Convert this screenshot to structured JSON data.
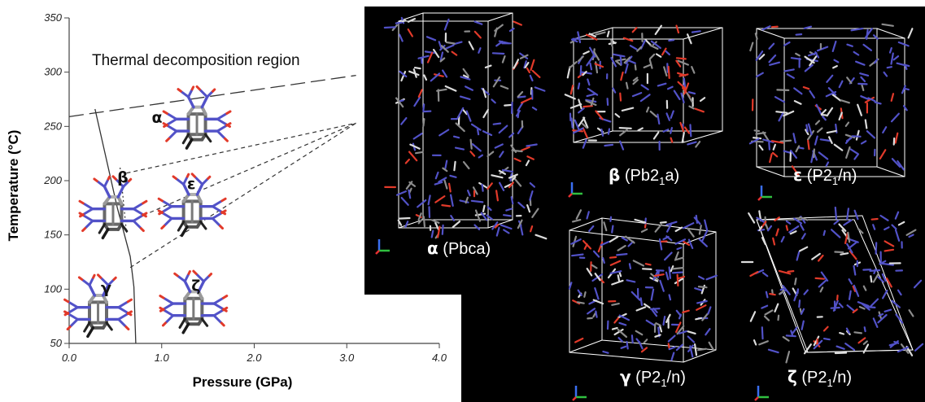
{
  "chart_data": {
    "type": "phase-diagram",
    "xlabel": "Pressure (GPa)",
    "ylabel": "Temperature (°C)",
    "xlim": [
      0.0,
      4.0
    ],
    "ylim": [
      50,
      350
    ],
    "x_ticks": [
      "0.0",
      "1.0",
      "2.0",
      "3.0",
      "4.0"
    ],
    "y_ticks": [
      "50",
      "100",
      "150",
      "200",
      "250",
      "300",
      "350"
    ],
    "region_label": "Thermal decomposition region",
    "decomposition_boundary": [
      [
        0.0,
        259
      ],
      [
        3.1,
        297
      ]
    ],
    "boundaries": [
      {
        "style": "solid",
        "points": [
          [
            0.28,
            266
          ],
          [
            0.52,
            175
          ],
          [
            0.66,
            130
          ],
          [
            0.7,
            102
          ],
          [
            0.72,
            50
          ]
        ]
      },
      {
        "style": "dotted",
        "points": [
          [
            0.55,
            212
          ],
          [
            0.62,
            152
          ]
        ]
      },
      {
        "style": "dashed",
        "points": [
          [
            0.62,
            207
          ],
          [
            3.1,
            253
          ]
        ]
      },
      {
        "style": "dashed",
        "points": [
          [
            0.8,
            168
          ],
          [
            3.1,
            253
          ]
        ]
      },
      {
        "style": "dashed",
        "points": [
          [
            0.66,
            120
          ],
          [
            3.1,
            253
          ]
        ]
      }
    ],
    "phases": [
      {
        "symbol": "α",
        "x": 0.95,
        "y": 258
      },
      {
        "symbol": "β",
        "x": 0.58,
        "y": 203
      },
      {
        "symbol": "ε",
        "x": 1.32,
        "y": 197
      },
      {
        "symbol": "γ",
        "x": 0.4,
        "y": 101
      },
      {
        "symbol": "ζ",
        "x": 1.37,
        "y": 103
      }
    ]
  },
  "crystal_panels": [
    {
      "id": "alpha",
      "symbol": "α",
      "label": " (Pbca)"
    },
    {
      "id": "beta",
      "symbol": "β",
      "label": " (Pb2",
      "sub": "1",
      "label_end": "a)"
    },
    {
      "id": "epsilon",
      "symbol": "ε",
      "label": " (P2",
      "sub": "1",
      "label_end": "/n)"
    },
    {
      "id": "gamma",
      "symbol": "γ",
      "label": " (P2",
      "sub": "1",
      "label_end": "/n)"
    },
    {
      "id": "zeta",
      "symbol": "ζ",
      "label": " (P2",
      "sub": "1",
      "label_end": "/n)"
    }
  ],
  "colors": {
    "carbon": "#8c8c8c",
    "nitrogen": "#5252c8",
    "oxygen": "#e23a2a",
    "hydrogen": "#dcdcdc",
    "axis_x": "#e83030",
    "axis_y": "#3a6ef0",
    "axis_z": "#30c040"
  }
}
